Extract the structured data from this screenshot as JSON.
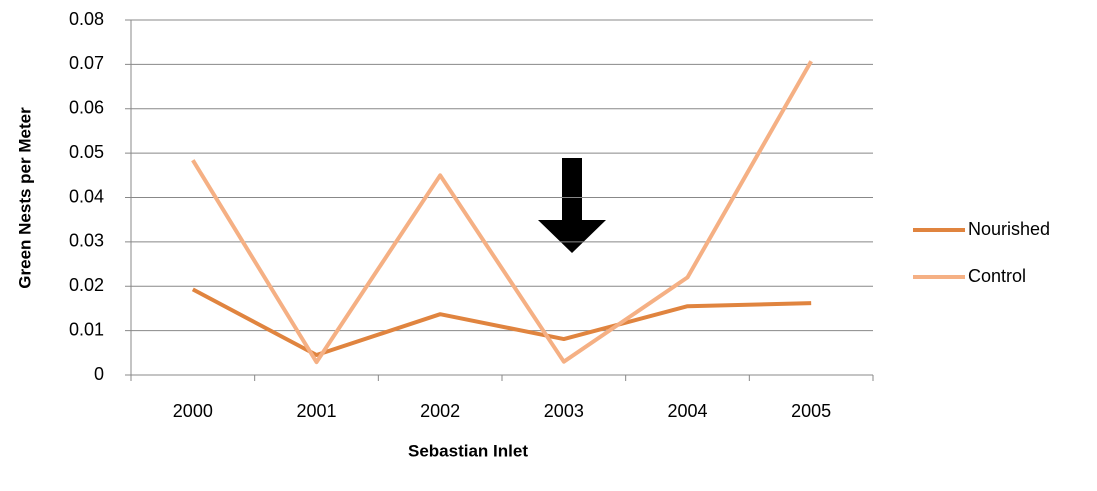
{
  "chart_data": {
    "type": "line",
    "x_label": "Sebastian Inlet",
    "y_label": "Green Nests per Meter",
    "categories": [
      "2000",
      "2001",
      "2002",
      "2003",
      "2004",
      "2005"
    ],
    "series": [
      {
        "name": "Nourished",
        "color": "#e0843f",
        "values": [
          0.0193,
          0.0045,
          0.0137,
          0.0081,
          0.0155,
          0.0162
        ]
      },
      {
        "name": "Control",
        "color": "#f5b084",
        "values": [
          0.0484,
          0.0029,
          0.045,
          0.003,
          0.022,
          0.0707
        ]
      }
    ],
    "ylim": [
      0,
      0.08
    ],
    "yticks": [
      0,
      0.01,
      0.02,
      0.03,
      0.04,
      0.05,
      0.06,
      0.07,
      0.08
    ],
    "grid": true,
    "legend": "right"
  }
}
